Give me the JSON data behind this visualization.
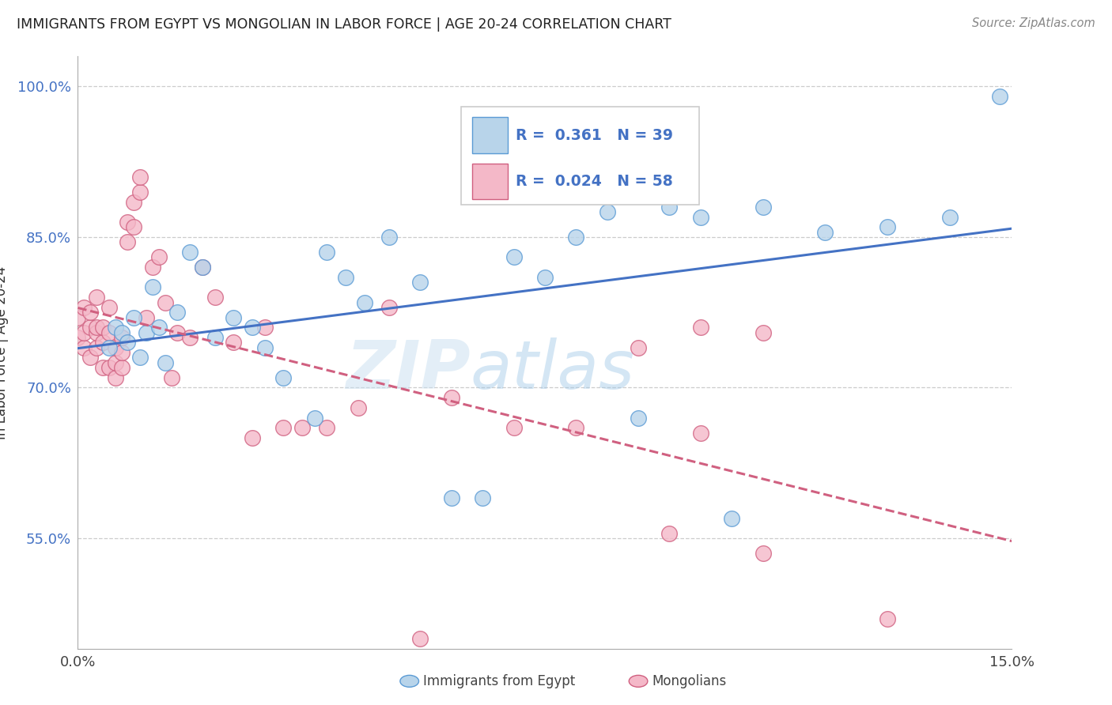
{
  "title": "IMMIGRANTS FROM EGYPT VS MONGOLIAN IN LABOR FORCE | AGE 20-24 CORRELATION CHART",
  "source": "Source: ZipAtlas.com",
  "ylabel": "In Labor Force | Age 20-24",
  "xlim": [
    0.0,
    0.15
  ],
  "ylim": [
    0.44,
    1.03
  ],
  "xticks": [
    0.0,
    0.15
  ],
  "xticklabels": [
    "0.0%",
    "15.0%"
  ],
  "yticks": [
    0.55,
    0.7,
    0.85,
    1.0
  ],
  "yticklabels": [
    "55.0%",
    "70.0%",
    "85.0%",
    "100.0%"
  ],
  "egypt_color": "#b8d4ea",
  "egypt_edge_color": "#5b9bd5",
  "mongolia_color": "#f4b8c8",
  "mongolia_edge_color": "#d06080",
  "egypt_R": 0.361,
  "egypt_N": 39,
  "mongolia_R": 0.024,
  "mongolia_N": 58,
  "egypt_line_color": "#4472c4",
  "mongolia_line_color": "#d06080",
  "legend_box_color_egypt": "#b8d4ea",
  "legend_box_color_mongolia": "#f4b8c8",
  "legend_text_color": "#4472c4",
  "watermark_top": "ZIP",
  "watermark_bot": "atlas",
  "background_color": "#ffffff",
  "grid_color": "#cccccc",
  "egypt_x": [
    0.005,
    0.006,
    0.007,
    0.008,
    0.009,
    0.01,
    0.011,
    0.012,
    0.013,
    0.014,
    0.016,
    0.018,
    0.02,
    0.022,
    0.025,
    0.028,
    0.03,
    0.033,
    0.038,
    0.04,
    0.043,
    0.046,
    0.05,
    0.055,
    0.06,
    0.065,
    0.07,
    0.075,
    0.08,
    0.085,
    0.09,
    0.095,
    0.1,
    0.105,
    0.11,
    0.12,
    0.13,
    0.14,
    0.148
  ],
  "egypt_y": [
    0.74,
    0.76,
    0.755,
    0.745,
    0.77,
    0.73,
    0.755,
    0.8,
    0.76,
    0.725,
    0.775,
    0.835,
    0.82,
    0.75,
    0.77,
    0.76,
    0.74,
    0.71,
    0.67,
    0.835,
    0.81,
    0.785,
    0.85,
    0.805,
    0.59,
    0.59,
    0.83,
    0.81,
    0.85,
    0.875,
    0.67,
    0.88,
    0.87,
    0.57,
    0.88,
    0.855,
    0.86,
    0.87,
    0.99
  ],
  "mongolia_x": [
    0.0,
    0.0,
    0.001,
    0.001,
    0.001,
    0.002,
    0.002,
    0.002,
    0.003,
    0.003,
    0.003,
    0.003,
    0.004,
    0.004,
    0.004,
    0.005,
    0.005,
    0.005,
    0.006,
    0.006,
    0.006,
    0.007,
    0.007,
    0.007,
    0.008,
    0.008,
    0.009,
    0.009,
    0.01,
    0.01,
    0.011,
    0.012,
    0.013,
    0.014,
    0.015,
    0.016,
    0.018,
    0.02,
    0.022,
    0.025,
    0.028,
    0.03,
    0.033,
    0.036,
    0.04,
    0.045,
    0.05,
    0.055,
    0.06,
    0.07,
    0.08,
    0.09,
    0.095,
    0.1,
    0.1,
    0.11,
    0.11,
    0.13
  ],
  "mongolia_y": [
    0.75,
    0.77,
    0.74,
    0.755,
    0.78,
    0.76,
    0.775,
    0.73,
    0.74,
    0.755,
    0.76,
    0.79,
    0.72,
    0.745,
    0.76,
    0.72,
    0.755,
    0.78,
    0.71,
    0.725,
    0.74,
    0.72,
    0.735,
    0.75,
    0.845,
    0.865,
    0.86,
    0.885,
    0.895,
    0.91,
    0.77,
    0.82,
    0.83,
    0.785,
    0.71,
    0.755,
    0.75,
    0.82,
    0.79,
    0.745,
    0.65,
    0.76,
    0.66,
    0.66,
    0.66,
    0.68,
    0.78,
    0.45,
    0.69,
    0.66,
    0.66,
    0.74,
    0.555,
    0.655,
    0.76,
    0.535,
    0.755,
    0.47
  ]
}
